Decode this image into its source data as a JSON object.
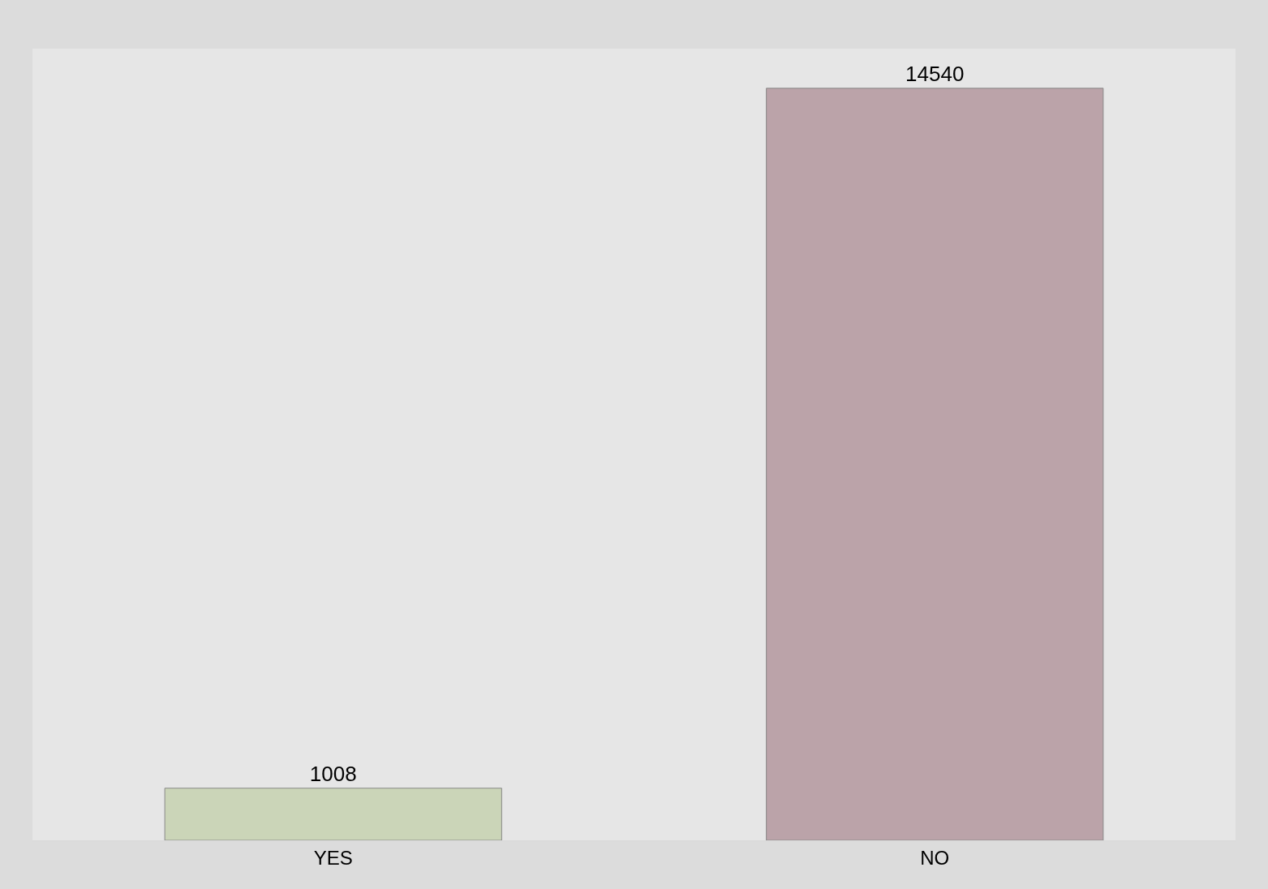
{
  "chart_data": {
    "type": "bar",
    "categories": [
      "YES",
      "NO"
    ],
    "values": [
      1008,
      14540
    ],
    "colors": [
      "#cbd5b8",
      "#bba3a9"
    ],
    "data_labels": true
  }
}
